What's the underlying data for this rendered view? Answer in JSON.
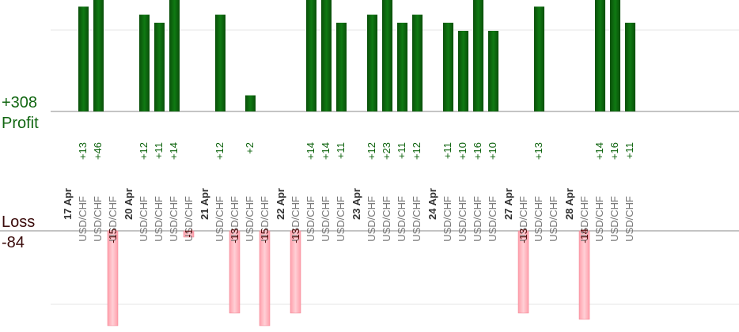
{
  "chart_data": {
    "type": "bar",
    "summary": {
      "profit_total": "+308",
      "profit_title": "Profit",
      "loss_title": "Loss",
      "loss_total": "-84"
    },
    "colors": {
      "profit": "#0b5e0b",
      "profit_text": "#116611",
      "loss": "#ffb6bf",
      "loss_text": "#5a0f0f",
      "date_text": "#333333",
      "pair_text": "#777777",
      "axis": "#888888",
      "grid": "#e6e6e6"
    },
    "ylim_profit": [
      0,
      46
    ],
    "ylim_loss": [
      0,
      15
    ],
    "groups": [
      {
        "date": "17 Apr",
        "trades": [
          {
            "pair": "USD/CHF",
            "value": 13,
            "label": "+13"
          },
          {
            "pair": "USD/CHF",
            "value": 46,
            "label": "+46"
          },
          {
            "pair": "USD/CHF",
            "value": -15,
            "label": "-15"
          }
        ]
      },
      {
        "date": "20 Apr",
        "trades": [
          {
            "pair": "USD/CHF",
            "value": 12,
            "label": "+12"
          },
          {
            "pair": "USD/CHF",
            "value": 11,
            "label": "+11"
          },
          {
            "pair": "USD/CHF",
            "value": 14,
            "label": "+14"
          },
          {
            "pair": "USD/CHF",
            "value": -1,
            "label": "-1"
          }
        ]
      },
      {
        "date": "21 Apr",
        "trades": [
          {
            "pair": "USD/CHF",
            "value": 12,
            "label": "+12"
          },
          {
            "pair": "USD/CHF",
            "value": -13,
            "label": "-13"
          },
          {
            "pair": "USD/CHF",
            "value": 2,
            "label": "+2"
          },
          {
            "pair": "USD/CHF",
            "value": -15,
            "label": "-15"
          }
        ]
      },
      {
        "date": "22 Apr",
        "trades": [
          {
            "pair": "USD/CHF",
            "value": -13,
            "label": "-13"
          },
          {
            "pair": "USD/CHF",
            "value": 14,
            "label": "+14"
          },
          {
            "pair": "USD/CHF",
            "value": 14,
            "label": "+14"
          },
          {
            "pair": "USD/CHF",
            "value": 11,
            "label": "+11"
          }
        ]
      },
      {
        "date": "23 Apr",
        "trades": [
          {
            "pair": "USD/CHF",
            "value": 12,
            "label": "+12"
          },
          {
            "pair": "USD/CHF",
            "value": 23,
            "label": "+23"
          },
          {
            "pair": "USD/CHF",
            "value": 11,
            "label": "+11"
          },
          {
            "pair": "USD/CHF",
            "value": 12,
            "label": "+12"
          }
        ]
      },
      {
        "date": "24 Apr",
        "trades": [
          {
            "pair": "USD/CHF",
            "value": 11,
            "label": "+11"
          },
          {
            "pair": "USD/CHF",
            "value": 10,
            "label": "+10"
          },
          {
            "pair": "USD/CHF",
            "value": 16,
            "label": "+16"
          },
          {
            "pair": "USD/CHF",
            "value": 10,
            "label": "+10"
          }
        ]
      },
      {
        "date": "27 Apr",
        "trades": [
          {
            "pair": "USD/CHF",
            "value": -13,
            "label": "-13"
          },
          {
            "pair": "USD/CHF",
            "value": 13,
            "label": "+13"
          },
          {
            "pair": "USD/CHF",
            "value": null,
            "label": ""
          }
        ]
      },
      {
        "date": "28 Apr",
        "trades": [
          {
            "pair": "USD/CHF",
            "value": -14,
            "label": "-14"
          },
          {
            "pair": "USD/CHF",
            "value": 14,
            "label": "+14"
          },
          {
            "pair": "USD/CHF",
            "value": 16,
            "label": "+16"
          },
          {
            "pair": "USD/CHF",
            "value": 11,
            "label": "+11"
          }
        ]
      }
    ]
  }
}
